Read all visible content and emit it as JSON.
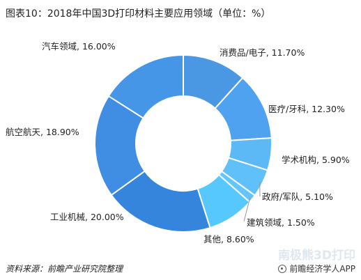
{
  "title": "图表10：2018年中国3D打印材料主要应用领域（单位：%）",
  "chart_data": {
    "type": "pie",
    "donut": true,
    "slices": [
      {
        "name": "消费品/电子",
        "value": 11.7,
        "label": "消费品/电子, 11.70%",
        "color": "#4a97e4"
      },
      {
        "name": "医疗/牙科",
        "value": 12.3,
        "label": "医疗/牙科, 12.30%",
        "color": "#4fa2ef"
      },
      {
        "name": "学术机构",
        "value": 5.9,
        "label": "学术机构, 5.90%",
        "color": "#5db8f6"
      },
      {
        "name": "政府/军队",
        "value": 5.1,
        "label": "政府/军队, 5.10%",
        "color": "#60c0f9"
      },
      {
        "name": "建筑领域",
        "value": 1.5,
        "label": "建筑领域, 1.50%",
        "color": "#62c6fb"
      },
      {
        "name": "其他",
        "value": 8.6,
        "label": "其他, 8.60%",
        "color": "#56c8fd"
      },
      {
        "name": "工业机械",
        "value": 20.0,
        "label": "工业机械, 20.00%",
        "color": "#3585dd"
      },
      {
        "name": "航空航天",
        "value": 18.9,
        "label": "航空航天, 18.90%",
        "color": "#3f8ee3"
      },
      {
        "name": "汽车领域",
        "value": 16.0,
        "label": "汽车领域, 16.00%",
        "color": "#4596e6"
      }
    ]
  },
  "footer": {
    "source": "资料来源：前瞻产业研究院整理",
    "app": "前瞻经济学人APP",
    "watermark": "南极熊3D打印"
  }
}
